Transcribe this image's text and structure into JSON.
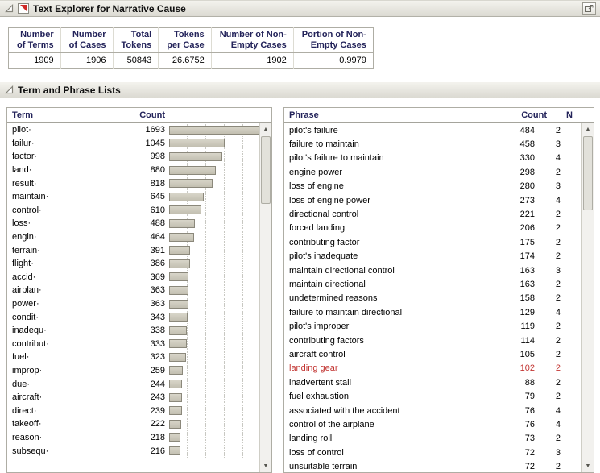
{
  "header": {
    "title": "Text Explorer for Narrative Cause"
  },
  "section": {
    "title": "Term and Phrase Lists"
  },
  "icons": {
    "scroll_up": "▲",
    "scroll_down": "▼"
  },
  "colors": {
    "header_text": "#23235a",
    "bar_fill": "#cbc8bb",
    "bar_border": "#8b887b",
    "highlight_text": "#c23431",
    "red_triangle": "#cf2a27"
  },
  "summary": {
    "columns": [
      {
        "label": "Number\nof Terms",
        "value": "1909"
      },
      {
        "label": "Number\nof Cases",
        "value": "1906"
      },
      {
        "label": "Total\nTokens",
        "value": "50843"
      },
      {
        "label": "Tokens\nper Case",
        "value": "26.6752"
      },
      {
        "label": "Number of Non-\nEmpty Cases",
        "value": "1902"
      },
      {
        "label": "Portion of Non-\nEmpty Cases",
        "value": "0.9979"
      }
    ]
  },
  "terms": {
    "headers": {
      "term": "Term",
      "count": "Count"
    },
    "max_count": 1693,
    "rows": [
      {
        "term": "pilot·",
        "count": 1693
      },
      {
        "term": "failur·",
        "count": 1045
      },
      {
        "term": "factor·",
        "count": 998
      },
      {
        "term": "land·",
        "count": 880
      },
      {
        "term": "result·",
        "count": 818
      },
      {
        "term": "maintain·",
        "count": 645
      },
      {
        "term": "control·",
        "count": 610
      },
      {
        "term": "loss·",
        "count": 488
      },
      {
        "term": "engin·",
        "count": 464
      },
      {
        "term": "terrain·",
        "count": 391
      },
      {
        "term": "flight·",
        "count": 386
      },
      {
        "term": "accid·",
        "count": 369
      },
      {
        "term": "airplan·",
        "count": 363
      },
      {
        "term": "power·",
        "count": 363
      },
      {
        "term": "condit·",
        "count": 343
      },
      {
        "term": "inadequ·",
        "count": 338
      },
      {
        "term": "contribut·",
        "count": 333
      },
      {
        "term": "fuel·",
        "count": 323
      },
      {
        "term": "improp·",
        "count": 259
      },
      {
        "term": "due·",
        "count": 244
      },
      {
        "term": "aircraft·",
        "count": 243
      },
      {
        "term": "direct·",
        "count": 239
      },
      {
        "term": "takeoff·",
        "count": 222
      },
      {
        "term": "reason·",
        "count": 218
      },
      {
        "term": "subsequ·",
        "count": 216
      }
    ]
  },
  "phrases": {
    "headers": {
      "phrase": "Phrase",
      "count": "Count",
      "n": "N"
    },
    "rows": [
      {
        "phrase": "pilot's failure",
        "count": 484,
        "n": 2,
        "highlight": false
      },
      {
        "phrase": "failure to maintain",
        "count": 458,
        "n": 3,
        "highlight": false
      },
      {
        "phrase": "pilot's failure to maintain",
        "count": 330,
        "n": 4,
        "highlight": false
      },
      {
        "phrase": "engine power",
        "count": 298,
        "n": 2,
        "highlight": false
      },
      {
        "phrase": "loss of engine",
        "count": 280,
        "n": 3,
        "highlight": false
      },
      {
        "phrase": "loss of engine power",
        "count": 273,
        "n": 4,
        "highlight": false
      },
      {
        "phrase": "directional control",
        "count": 221,
        "n": 2,
        "highlight": false
      },
      {
        "phrase": "forced landing",
        "count": 206,
        "n": 2,
        "highlight": false
      },
      {
        "phrase": "contributing factor",
        "count": 175,
        "n": 2,
        "highlight": false
      },
      {
        "phrase": "pilot's inadequate",
        "count": 174,
        "n": 2,
        "highlight": false
      },
      {
        "phrase": "maintain directional control",
        "count": 163,
        "n": 3,
        "highlight": false
      },
      {
        "phrase": "maintain directional",
        "count": 163,
        "n": 2,
        "highlight": false
      },
      {
        "phrase": "undetermined reasons",
        "count": 158,
        "n": 2,
        "highlight": false
      },
      {
        "phrase": "failure to maintain directional",
        "count": 129,
        "n": 4,
        "highlight": false
      },
      {
        "phrase": "pilot's improper",
        "count": 119,
        "n": 2,
        "highlight": false
      },
      {
        "phrase": "contributing factors",
        "count": 114,
        "n": 2,
        "highlight": false
      },
      {
        "phrase": "aircraft control",
        "count": 105,
        "n": 2,
        "highlight": false
      },
      {
        "phrase": "landing gear",
        "count": 102,
        "n": 2,
        "highlight": true
      },
      {
        "phrase": "inadvertent stall",
        "count": 88,
        "n": 2,
        "highlight": false
      },
      {
        "phrase": "fuel exhaustion",
        "count": 79,
        "n": 2,
        "highlight": false
      },
      {
        "phrase": "associated with the accident",
        "count": 76,
        "n": 4,
        "highlight": false
      },
      {
        "phrase": "control of the airplane",
        "count": 76,
        "n": 4,
        "highlight": false
      },
      {
        "phrase": "landing roll",
        "count": 73,
        "n": 2,
        "highlight": false
      },
      {
        "phrase": "loss of control",
        "count": 72,
        "n": 3,
        "highlight": false
      },
      {
        "phrase": "unsuitable terrain",
        "count": 72,
        "n": 2,
        "highlight": false
      }
    ]
  }
}
